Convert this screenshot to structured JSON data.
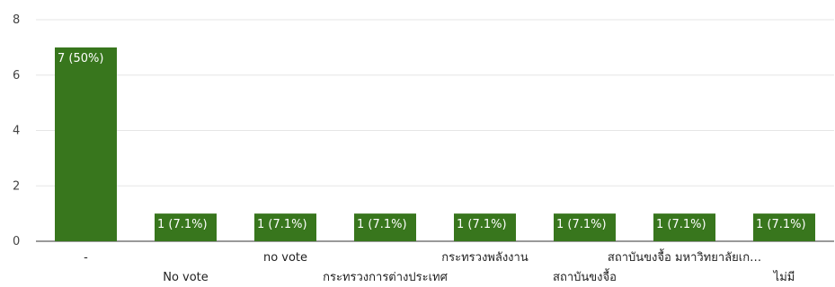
{
  "chart_data": {
    "type": "bar",
    "categories": [
      "-",
      "No vote",
      "no vote",
      "กระทรวงการต่างประเทศ",
      "กระทรวงพลังงาน",
      "สถาบันขงจื้อ",
      "สถาบันขงจื้อ มหาวิทยาลัยเก…",
      "ไม่มี"
    ],
    "values": [
      7,
      1,
      1,
      1,
      1,
      1,
      1,
      1
    ],
    "value_labels": [
      "7 (50%)",
      "1 (7.1%)",
      "1 (7.1%)",
      "1 (7.1%)",
      "1 (7.1%)",
      "1 (7.1%)",
      "1 (7.1%)",
      "1 (7.1%)"
    ],
    "ylim": [
      0,
      8
    ],
    "yticks": [
      0,
      2,
      4,
      6,
      8
    ],
    "grid": true,
    "bar_color": "#38761d",
    "title": "",
    "xlabel": "",
    "ylabel": ""
  }
}
